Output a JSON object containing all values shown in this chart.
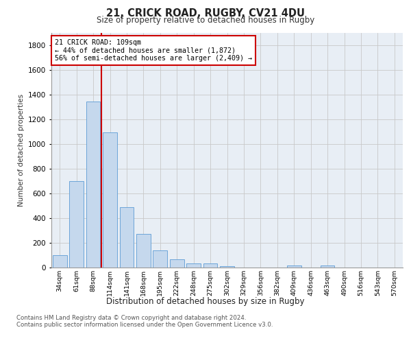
{
  "title1": "21, CRICK ROAD, RUGBY, CV21 4DU",
  "title2": "Size of property relative to detached houses in Rugby",
  "xlabel": "Distribution of detached houses by size in Rugby",
  "ylabel": "Number of detached properties",
  "categories": [
    "34sqm",
    "61sqm",
    "88sqm",
    "114sqm",
    "141sqm",
    "168sqm",
    "195sqm",
    "222sqm",
    "248sqm",
    "275sqm",
    "302sqm",
    "329sqm",
    "356sqm",
    "382sqm",
    "409sqm",
    "436sqm",
    "463sqm",
    "490sqm",
    "516sqm",
    "543sqm",
    "570sqm"
  ],
  "values": [
    100,
    700,
    1340,
    1095,
    490,
    270,
    137,
    68,
    35,
    35,
    12,
    0,
    0,
    0,
    14,
    0,
    18,
    0,
    0,
    0,
    0
  ],
  "bar_color": "#c5d8ed",
  "bar_edge_color": "#5b9bd5",
  "vline_x": 2.5,
  "vline_color": "#cc0000",
  "annotation_line1": "21 CRICK ROAD: 109sqm",
  "annotation_line2": "← 44% of detached houses are smaller (1,872)",
  "annotation_line3": "56% of semi-detached houses are larger (2,409) →",
  "annotation_box_color": "#ffffff",
  "annotation_box_edge": "#cc0000",
  "ylim": [
    0,
    1900
  ],
  "yticks": [
    0,
    200,
    400,
    600,
    800,
    1000,
    1200,
    1400,
    1600,
    1800
  ],
  "grid_color": "#c8c8c8",
  "bg_color": "#e8eef5",
  "footer1": "Contains HM Land Registry data © Crown copyright and database right 2024.",
  "footer2": "Contains public sector information licensed under the Open Government Licence v3.0."
}
